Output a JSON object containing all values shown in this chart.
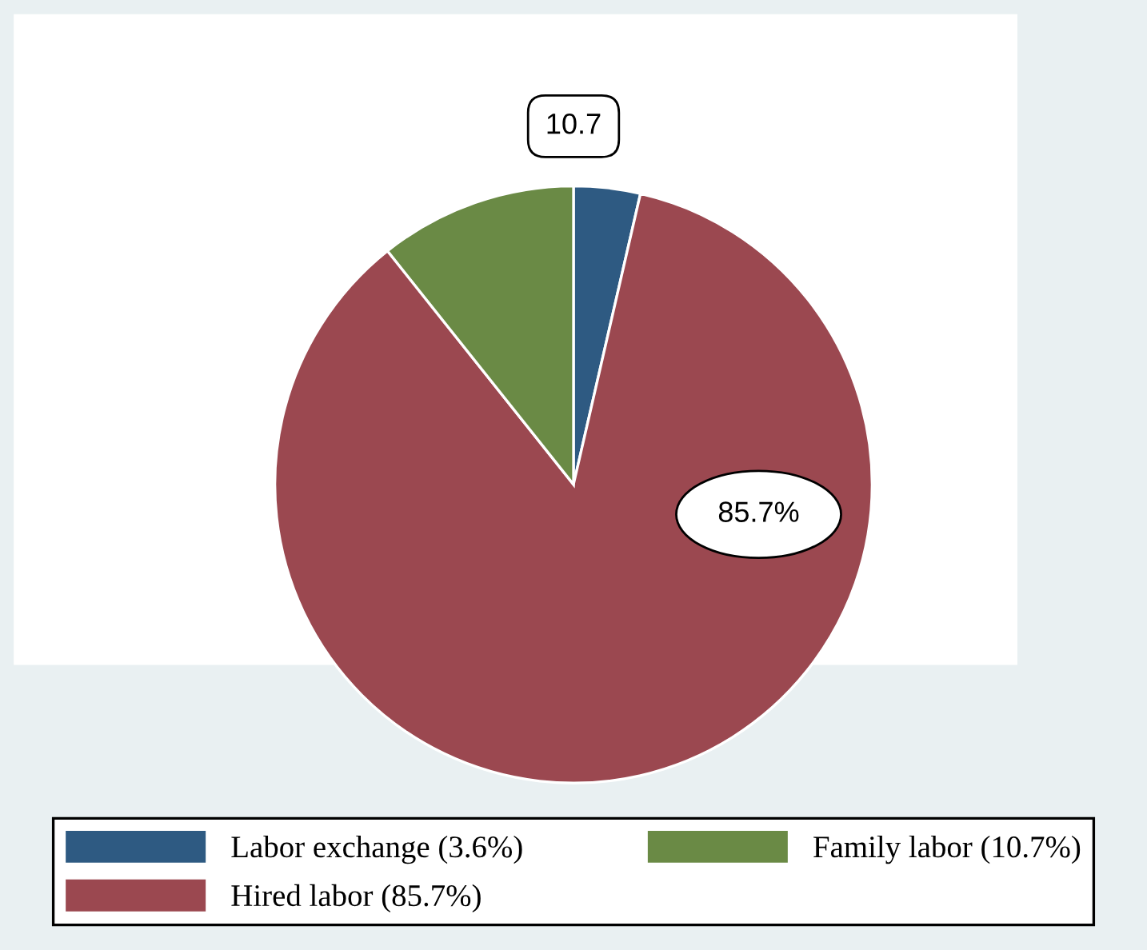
{
  "chart_data": {
    "type": "pie",
    "categories": [
      "Labor exchange (3.6%)",
      "Hired labor (85.7%)",
      "Family labor (10.7%)"
    ],
    "values": [
      3.6,
      85.7,
      10.7
    ],
    "colors": [
      "#2e5a82",
      "#9b4850",
      "#6a8a45"
    ],
    "value_labels": [
      null,
      "85.7%",
      "10.7"
    ],
    "legend": "bottom"
  }
}
